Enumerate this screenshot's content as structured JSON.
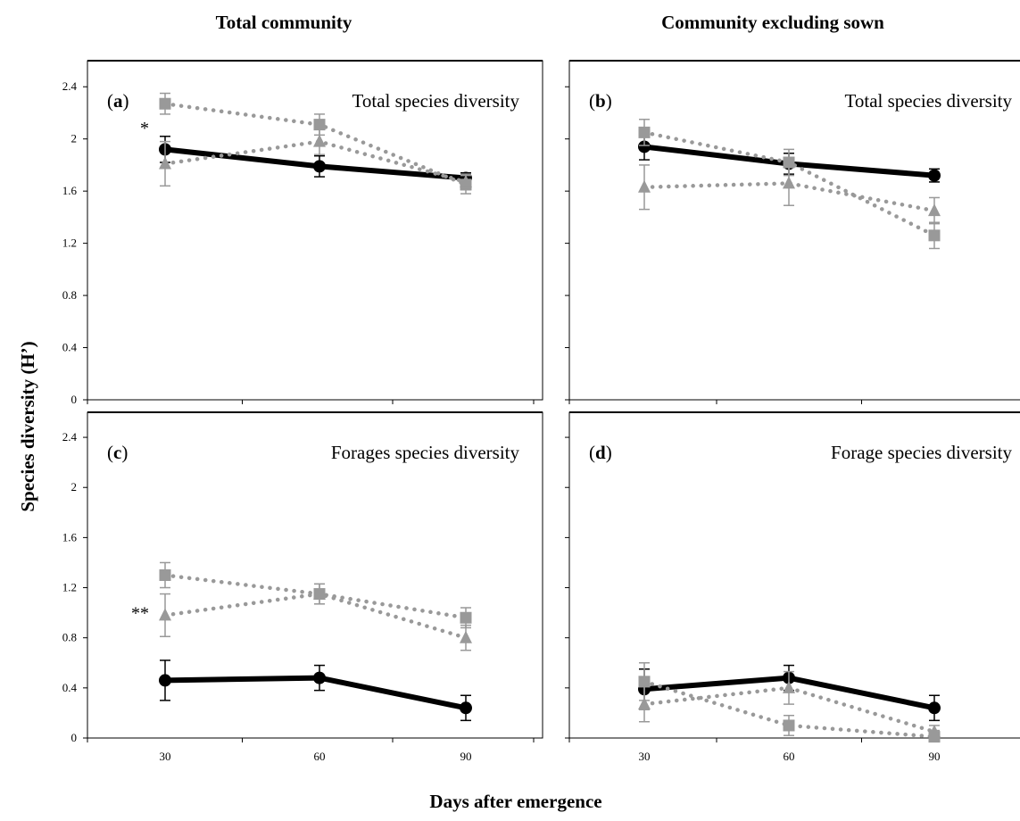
{
  "column_titles": [
    "Total community",
    "Community excluding sown"
  ],
  "ylabel": "Species diversity (H’)",
  "xlabel": "Days after emergence",
  "colors": {
    "series_black": "#000000",
    "series_grey": "#999999"
  },
  "chart_data": [
    {
      "id": "a",
      "type": "line",
      "panel_label": "a",
      "title": "Total species diversity",
      "annotations": [
        {
          "text": "*",
          "x": 30
        }
      ],
      "x": [
        30,
        60,
        90
      ],
      "xticks": [],
      "yticks": [
        "2.4",
        "2",
        "1.6",
        "1.2",
        "0.8",
        "0.4",
        "0"
      ],
      "ylim": [
        0,
        2.6
      ],
      "grid": false,
      "series": [
        {
          "style": "solid",
          "marker": "circle",
          "values": [
            1.92,
            1.79,
            1.7
          ],
          "errors": [
            0.1,
            0.08,
            0.04
          ]
        },
        {
          "style": "dotted",
          "marker": "square",
          "values": [
            2.27,
            2.11,
            1.65
          ],
          "errors": [
            0.08,
            0.08,
            0.07
          ]
        },
        {
          "style": "dotted",
          "marker": "triangle",
          "values": [
            1.81,
            1.98,
            1.67
          ],
          "errors": [
            0.17,
            0.1,
            0.06
          ]
        }
      ]
    },
    {
      "id": "b",
      "type": "line",
      "panel_label": "b",
      "title": "Total species diversity",
      "annotations": [],
      "x": [
        30,
        60,
        90
      ],
      "xticks": [],
      "yticks": [],
      "ylim": [
        0,
        2.6
      ],
      "grid": false,
      "series": [
        {
          "style": "solid",
          "marker": "circle",
          "values": [
            1.94,
            1.81,
            1.72
          ],
          "errors": [
            0.1,
            0.08,
            0.05
          ]
        },
        {
          "style": "dotted",
          "marker": "square",
          "values": [
            2.05,
            1.82,
            1.26
          ],
          "errors": [
            0.1,
            0.1,
            0.1
          ]
        },
        {
          "style": "dotted",
          "marker": "triangle",
          "values": [
            1.63,
            1.66,
            1.45
          ],
          "errors": [
            0.17,
            0.17,
            0.1
          ]
        }
      ]
    },
    {
      "id": "c",
      "type": "line",
      "panel_label": "c",
      "title": "Forages species diversity",
      "annotations": [
        {
          "text": "**",
          "x": 30
        }
      ],
      "x": [
        30,
        60,
        90
      ],
      "xticks": [
        "30",
        "60",
        "90"
      ],
      "yticks": [
        "2.4",
        "2",
        "1.6",
        "1.2",
        "0.8",
        "0.4",
        "0"
      ],
      "ylim": [
        0,
        2.6
      ],
      "grid": false,
      "series": [
        {
          "style": "solid",
          "marker": "circle",
          "values": [
            0.46,
            0.48,
            0.24
          ],
          "errors": [
            0.16,
            0.1,
            0.1
          ]
        },
        {
          "style": "dotted",
          "marker": "square",
          "values": [
            1.3,
            1.15,
            0.96
          ],
          "errors": [
            0.1,
            0.08,
            0.08
          ]
        },
        {
          "style": "dotted",
          "marker": "triangle",
          "values": [
            0.98,
            1.15,
            0.8
          ],
          "errors": [
            0.17,
            0.08,
            0.1
          ]
        }
      ]
    },
    {
      "id": "d",
      "type": "line",
      "panel_label": "d",
      "title": "Forage species diversity",
      "annotations": [],
      "x": [
        30,
        60,
        90
      ],
      "xticks": [
        "30",
        "60",
        "90"
      ],
      "yticks": [],
      "ylim": [
        0,
        2.6
      ],
      "grid": false,
      "series": [
        {
          "style": "solid",
          "marker": "circle",
          "values": [
            0.39,
            0.48,
            0.24
          ],
          "errors": [
            0.16,
            0.1,
            0.1
          ]
        },
        {
          "style": "dotted",
          "marker": "square",
          "values": [
            0.45,
            0.1,
            0.01
          ],
          "errors": [
            0.15,
            0.08,
            0.05
          ]
        },
        {
          "style": "dotted",
          "marker": "triangle",
          "values": [
            0.27,
            0.4,
            0.05
          ],
          "errors": [
            0.14,
            0.13,
            0.05
          ]
        }
      ]
    }
  ]
}
